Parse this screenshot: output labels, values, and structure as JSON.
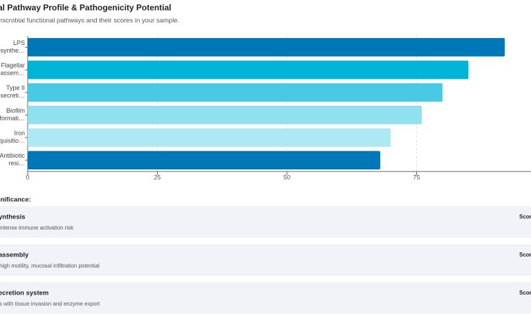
{
  "chart_data": {
    "type": "hbar",
    "title": "al Pathway Profile & Pathogenicity Potential",
    "subtitle": "microbial functional pathways and their scores in your sample.",
    "categories": [
      "LPS biosynthe…",
      "Flagellar assem…",
      "Type II secreti…",
      "Biofilm formati…",
      "Iron acquisitio…",
      "Antibiotic resi…"
    ],
    "values": [
      92,
      85,
      80,
      76,
      70,
      68
    ],
    "colors": [
      "#0077b6",
      "#00b4d8",
      "#48cae4",
      "#90e0ef",
      "#ade8f4",
      "#0077b6"
    ],
    "xlim": [
      0,
      97
    ],
    "xticks": [
      0,
      25,
      50,
      75
    ],
    "grid": true
  },
  "significance": {
    "heading": "ignificance:",
    "items": [
      {
        "title": "ynthesis",
        "description": "intense immune activation risk",
        "score": "Score"
      },
      {
        "title": "assembly",
        "description": "high motility, mucosal infiltration potential",
        "score": "Score"
      },
      {
        "title": "ecretion system",
        "description": "s with tissue invasion and enzyme export",
        "score": "Score"
      }
    ]
  }
}
